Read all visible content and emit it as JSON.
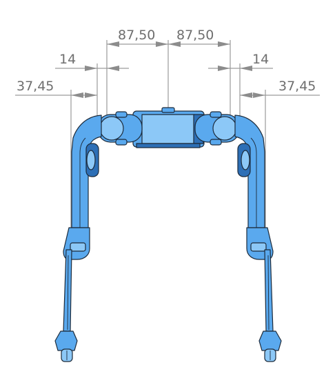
{
  "dimensions": {
    "half_width_left": "87,50",
    "half_width_right": "87,50",
    "offset_left": "14",
    "offset_right": "14",
    "leg_left": "37,45",
    "leg_right": "37,45"
  },
  "colors": {
    "part_fill": "#5aa9ee",
    "part_light": "#8cc8f7",
    "part_dark": "#2d6fb6",
    "dimension": "#8c8c8c"
  }
}
